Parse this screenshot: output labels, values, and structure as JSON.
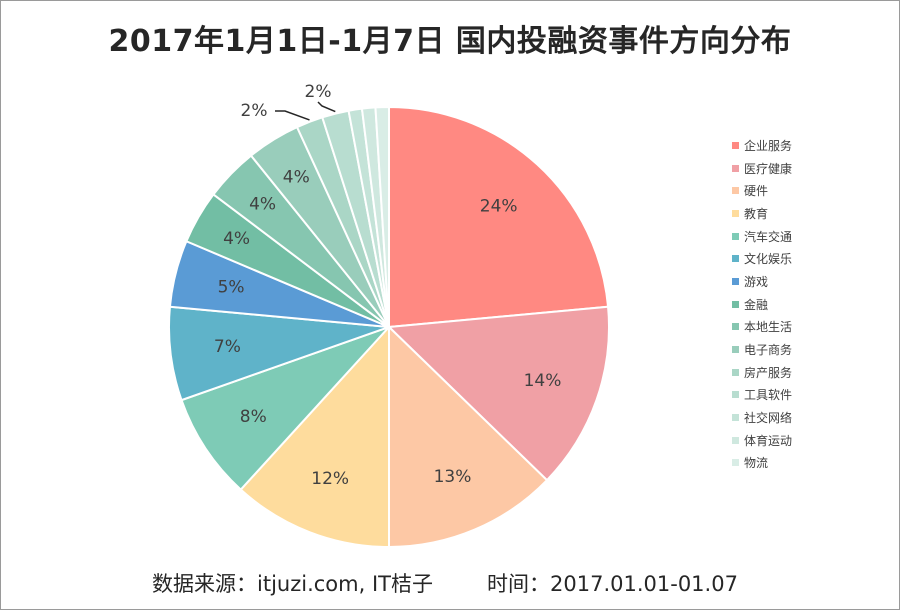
{
  "title": "2017年1月1日-1月7日 国内投融资事件方向分布",
  "footer": {
    "source": "数据来源：itjuzi.com, IT桔子",
    "time": "时间：2017.01.01-01.07"
  },
  "chart_data": {
    "type": "pie",
    "title": "2017年1月1日-1月7日 国内投融资事件方向分布",
    "legend_position": "right",
    "start_angle": "12 o'clock, clockwise",
    "slices": [
      {
        "label": "企业服务",
        "value": 24,
        "display": "24%",
        "color": "#ff8982"
      },
      {
        "label": "医疗健康",
        "value": 14,
        "display": "14%",
        "color": "#f0a0a5"
      },
      {
        "label": "硬件",
        "value": 13,
        "display": "13%",
        "color": "#fdc8a5"
      },
      {
        "label": "教育",
        "value": 12,
        "display": "12%",
        "color": "#fedc9d"
      },
      {
        "label": "汽车交通",
        "value": 8,
        "display": "8%",
        "color": "#7ecbb6"
      },
      {
        "label": "文化娱乐",
        "value": 7,
        "display": "7%",
        "color": "#5fb3c9"
      },
      {
        "label": "游戏",
        "value": 5,
        "display": "5%",
        "color": "#5a9bd5"
      },
      {
        "label": "金融",
        "value": 4,
        "display": "4%",
        "color": "#72bea4"
      },
      {
        "label": "本地生活",
        "value": 4,
        "display": "4%",
        "color": "#86c6b0"
      },
      {
        "label": "电子商务",
        "value": 4,
        "display": "4%",
        "color": "#99cdbb"
      },
      {
        "label": "房产服务",
        "value": 2,
        "display": "2%",
        "color": "#aad6c6"
      },
      {
        "label": "工具软件",
        "value": 2,
        "display": "2%",
        "color": "#b8ddd0"
      },
      {
        "label": "社交网络",
        "value": 1,
        "display": "",
        "color": "#c4e3d8"
      },
      {
        "label": "体育运动",
        "value": 1,
        "display": "",
        "color": "#cfe8df"
      },
      {
        "label": "物流",
        "value": 1,
        "display": "",
        "color": "#d9ede6"
      }
    ]
  }
}
